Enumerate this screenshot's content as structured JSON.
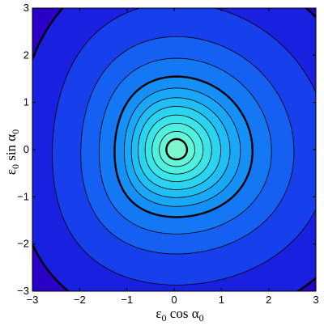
{
  "chart_data": {
    "type": "contour",
    "xlabel": {
      "eps": "ε",
      "eps_sub": "0",
      "func": " cos α",
      "alpha_sub": "0"
    },
    "ylabel": {
      "eps": "ε",
      "eps_sub": "0",
      "func": " sin α",
      "alpha_sub": "0"
    },
    "xlim": [
      -3,
      3
    ],
    "ylim": [
      -3,
      3
    ],
    "x_ticks": [
      -3,
      -2,
      -1,
      0,
      1,
      2,
      3
    ],
    "y_ticks": [
      -3,
      -2,
      -1,
      0,
      1,
      2,
      3
    ],
    "x_tick_labels": [
      "−3",
      "−2",
      "−1",
      "0",
      "1",
      "2",
      "3"
    ],
    "y_tick_labels": [
      "−3",
      "−2",
      "−1",
      "0",
      "1",
      "2",
      "3"
    ],
    "grid": false,
    "center": [
      0.05,
      0.0
    ],
    "contour_radii": [
      0.22,
      0.38,
      0.55,
      0.72,
      0.9,
      1.08,
      1.28,
      1.52,
      1.9,
      2.35,
      3.05,
      3.95
    ],
    "bold_levels": [
      0,
      7,
      11
    ],
    "fill_colors": [
      "#2a00c8",
      "#1a20e0",
      "#1740ec",
      "#1560f2",
      "#1478f5",
      "#1590f6",
      "#18a8f7",
      "#1fbff5",
      "#2ad4f0",
      "#3ae4e8",
      "#4ff0e0",
      "#66f5d6",
      "#7ef7cc"
    ]
  }
}
